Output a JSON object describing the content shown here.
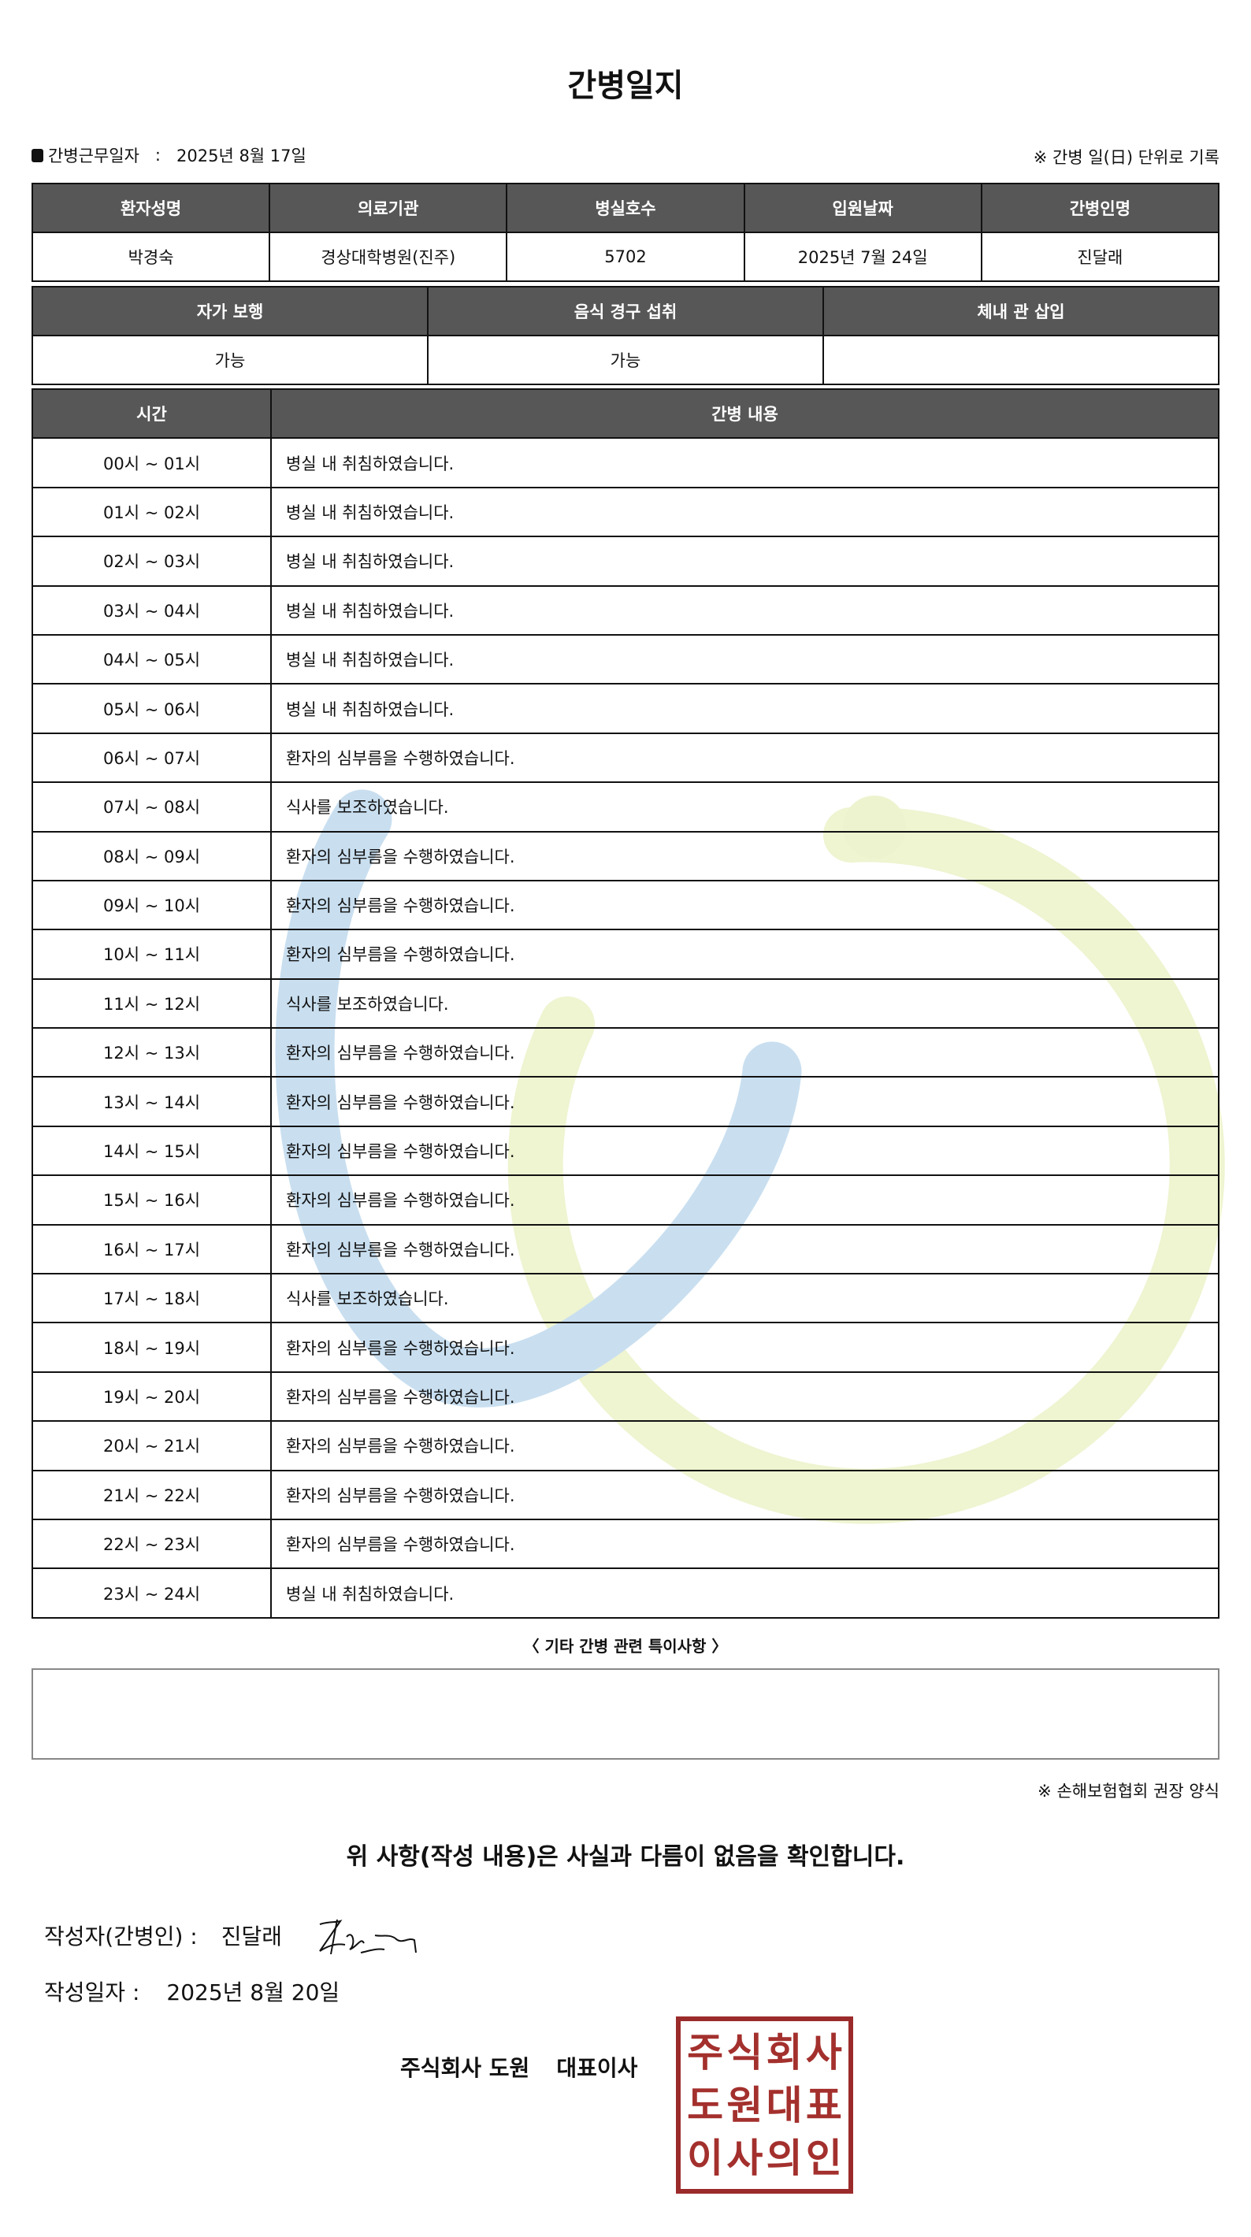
{
  "title": "간병일지",
  "info": {
    "label": "간병근무일자",
    "separator": ":",
    "date": "2025년 8월 17일"
  },
  "note_top": "※ 간병 일(日) 단위로 기록",
  "patient_table": {
    "headers": [
      "환자성명",
      "의료기관",
      "병실호수",
      "입원날짜",
      "간병인명"
    ],
    "values": [
      "박경숙",
      "경상대학병원(진주)",
      "5702",
      "2025년 7월 24일",
      "진달래"
    ]
  },
  "status_table": {
    "headers": [
      "자가 보행",
      "음식 경구 섭취",
      "체내 관 삽입"
    ],
    "values": [
      "가능",
      "가능",
      ""
    ]
  },
  "log_table": {
    "headers": [
      "시간",
      "간병 내용"
    ],
    "rows": [
      {
        "time": "00시 ~ 01시",
        "content": "병실 내 취침하였습니다."
      },
      {
        "time": "01시 ~ 02시",
        "content": "병실 내 취침하였습니다."
      },
      {
        "time": "02시 ~ 03시",
        "content": "병실 내 취침하였습니다."
      },
      {
        "time": "03시 ~ 04시",
        "content": "병실 내 취침하였습니다."
      },
      {
        "time": "04시 ~ 05시",
        "content": "병실 내 취침하였습니다."
      },
      {
        "time": "05시 ~ 06시",
        "content": "병실 내 취침하였습니다."
      },
      {
        "time": "06시 ~ 07시",
        "content": "환자의 심부름을 수행하였습니다."
      },
      {
        "time": "07시 ~ 08시",
        "content": "식사를 보조하였습니다."
      },
      {
        "time": "08시 ~ 09시",
        "content": "환자의 심부름을 수행하였습니다."
      },
      {
        "time": "09시 ~ 10시",
        "content": "환자의 심부름을 수행하였습니다."
      },
      {
        "time": "10시 ~ 11시",
        "content": "환자의 심부름을 수행하였습니다."
      },
      {
        "time": "11시 ~ 12시",
        "content": "식사를 보조하였습니다."
      },
      {
        "time": "12시 ~ 13시",
        "content": "환자의 심부름을 수행하였습니다."
      },
      {
        "time": "13시 ~ 14시",
        "content": "환자의 심부름을 수행하였습니다."
      },
      {
        "time": "14시 ~ 15시",
        "content": "환자의 심부름을 수행하였습니다."
      },
      {
        "time": "15시 ~ 16시",
        "content": "환자의 심부름을 수행하였습니다."
      },
      {
        "time": "16시 ~ 17시",
        "content": "환자의 심부름을 수행하였습니다."
      },
      {
        "time": "17시 ~ 18시",
        "content": "식사를 보조하였습니다."
      },
      {
        "time": "18시 ~ 19시",
        "content": "환자의 심부름을 수행하였습니다."
      },
      {
        "time": "19시 ~ 20시",
        "content": "환자의 심부름을 수행하였습니다."
      },
      {
        "time": "20시 ~ 21시",
        "content": "환자의 심부름을 수행하였습니다."
      },
      {
        "time": "21시 ~ 22시",
        "content": "환자의 심부름을 수행하였습니다."
      },
      {
        "time": "22시 ~ 23시",
        "content": "환자의 심부름을 수행하였습니다."
      },
      {
        "time": "23시 ~ 24시",
        "content": "병실 내 취침하였습니다."
      }
    ]
  },
  "notes": {
    "label": "〈 기타 간병 관련 특이사항 〉",
    "content": ""
  },
  "note_bottom": "※ 손해보험협회 권장 양식",
  "confirm": "위 사항(작성 내용)은 사실과 다름이 없음을 확인합니다.",
  "writer": {
    "label": "작성자(간병인) :",
    "name": "진달래"
  },
  "written_date": {
    "label": "작성일자 :",
    "date": "2025년 8월 20일"
  },
  "company": {
    "name": "주식회사 도원",
    "title": "대표이사"
  },
  "seal": {
    "text": "주식회사도원대표이사의인",
    "color": "#a3302d"
  },
  "colors": {
    "header_bg": "#575757",
    "watermark_blue": "#c9dff0",
    "watermark_yellow": "#eef3cf"
  }
}
